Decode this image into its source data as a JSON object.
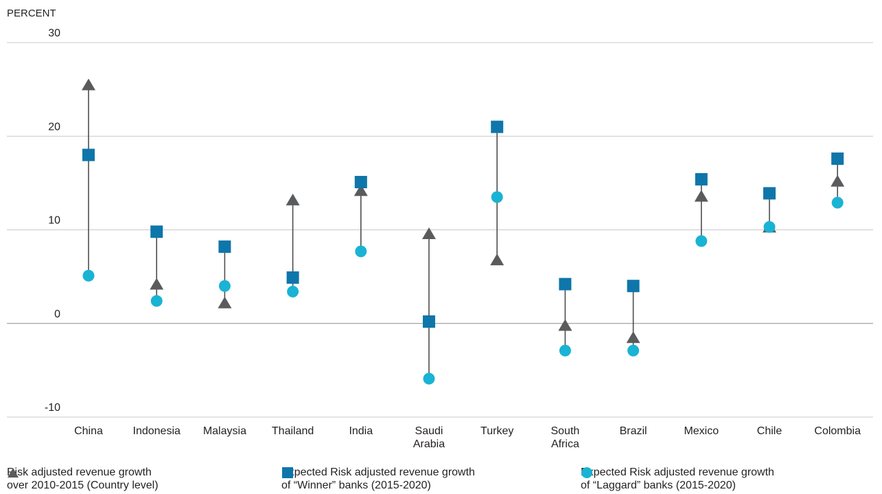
{
  "chart_data": {
    "type": "dot-range",
    "unit_label": "PERCENT",
    "ylim": [
      -10,
      30
    ],
    "yticks": [
      30,
      20,
      10,
      0,
      -10
    ],
    "grid": true,
    "legend_position": "bottom",
    "categories": [
      "China",
      "Indonesia",
      "Malaysia",
      "Thailand",
      "India",
      "Saudi\nArabia",
      "Turkey",
      "South\nAfrica",
      "Brazil",
      "Mexico",
      "Chile",
      "Colombia"
    ],
    "series": [
      {
        "name": "Risk adjusted revenue growth\nover 2010-2015 (Country level)",
        "marker": "triangle",
        "color": "#5a5b5d",
        "values": [
          25.5,
          4.2,
          2.2,
          13.2,
          14.2,
          9.6,
          6.8,
          -0.2,
          -1.5,
          13.6,
          10.3,
          15.2
        ]
      },
      {
        "name": "Expected Risk adjusted revenue growth\nof “Winner” banks (2015-2020)",
        "marker": "square",
        "color": "#0e76aa",
        "values": [
          18.0,
          9.8,
          8.2,
          4.9,
          15.1,
          0.2,
          21.0,
          4.2,
          4.0,
          15.4,
          13.9,
          17.6
        ]
      },
      {
        "name": "Expected Risk adjusted revenue growth\nof “Laggard” banks (2015-2020)",
        "marker": "circle",
        "color": "#19b3d4",
        "values": [
          5.1,
          2.4,
          4.0,
          3.4,
          7.7,
          -5.9,
          13.5,
          -2.9,
          -2.9,
          8.8,
          10.3,
          12.9
        ]
      }
    ]
  }
}
